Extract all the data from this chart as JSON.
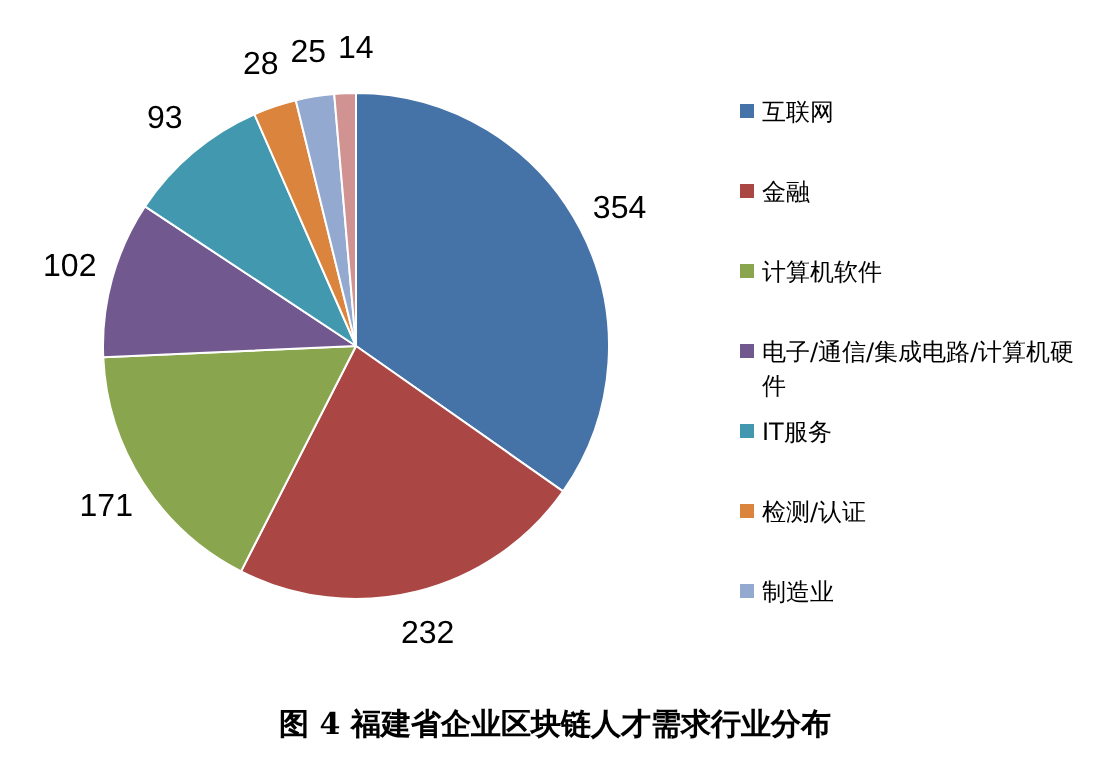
{
  "chart_data": {
    "type": "pie",
    "title": "图 4  福建省企业区块链人才需求行业分布",
    "categories": [
      "互联网",
      "金融",
      "计算机软件",
      "电子/通信/集成电路/计算机硬件",
      "IT服务",
      "检测/认证",
      "制造业",
      null
    ],
    "values": [
      354,
      232,
      171,
      102,
      93,
      28,
      25,
      14
    ],
    "colors": [
      "#4572a7",
      "#aa4643",
      "#89a54e",
      "#71588f",
      "#4198af",
      "#db843d",
      "#93a9cf",
      "#d19392"
    ],
    "data_labels": true,
    "legend": "right"
  }
}
